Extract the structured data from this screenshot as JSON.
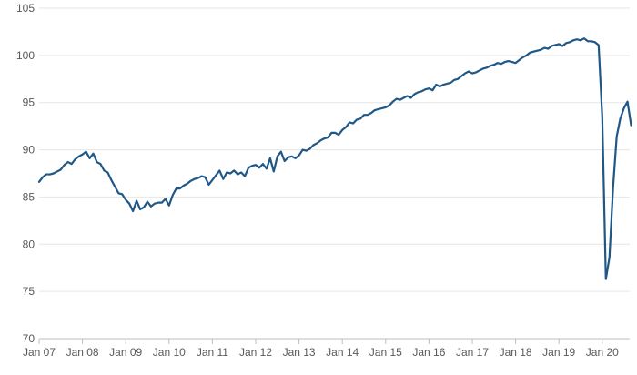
{
  "chart_data": {
    "type": "line",
    "title": "",
    "xlabel": "",
    "ylabel": "",
    "ylim": [
      70,
      105
    ],
    "y_ticks": [
      70,
      75,
      80,
      85,
      90,
      95,
      100,
      105
    ],
    "x_tick_labels": [
      "Jan 07",
      "Jan 08",
      "Jan 09",
      "Jan 10",
      "Jan 11",
      "Jan 12",
      "Jan 13",
      "Jan 14",
      "Jan 15",
      "Jan 16",
      "Jan 17",
      "Jan 18",
      "Jan 19",
      "Jan 20"
    ],
    "grid": "horizontal",
    "series_color": "#1f5786",
    "series": [
      {
        "values": [
          86.6,
          87.1,
          87.4,
          87.4,
          87.5,
          87.7,
          87.9,
          88.4,
          88.7,
          88.5,
          89.0,
          89.3,
          89.5,
          89.8,
          89.1,
          89.6,
          88.7,
          88.5,
          87.8,
          87.6,
          86.8,
          86.1,
          85.4,
          85.3,
          84.7,
          84.3,
          83.5,
          84.6,
          83.7,
          83.9,
          84.5,
          84.0,
          84.3,
          84.4,
          84.4,
          84.8,
          84.1,
          85.2,
          85.9,
          85.9,
          86.2,
          86.4,
          86.7,
          86.9,
          87.0,
          87.2,
          87.1,
          86.3,
          86.8,
          87.3,
          87.8,
          86.9,
          87.6,
          87.5,
          87.8,
          87.4,
          87.6,
          87.2,
          88.1,
          88.3,
          88.4,
          88.1,
          88.5,
          88.0,
          89.1,
          87.7,
          89.3,
          89.8,
          88.8,
          89.2,
          89.3,
          89.1,
          89.4,
          90.0,
          89.9,
          90.1,
          90.5,
          90.7,
          91.0,
          91.2,
          91.3,
          91.8,
          91.8,
          91.6,
          92.1,
          92.4,
          92.9,
          92.8,
          93.2,
          93.3,
          93.7,
          93.7,
          93.9,
          94.2,
          94.3,
          94.4,
          94.5,
          94.7,
          95.1,
          95.4,
          95.3,
          95.5,
          95.7,
          95.5,
          95.9,
          96.1,
          96.2,
          96.4,
          96.5,
          96.3,
          96.9,
          96.7,
          96.9,
          97.0,
          97.1,
          97.4,
          97.5,
          97.8,
          98.1,
          98.3,
          98.1,
          98.2,
          98.4,
          98.6,
          98.7,
          98.9,
          99.0,
          99.2,
          99.1,
          99.3,
          99.4,
          99.3,
          99.2,
          99.5,
          99.8,
          100.0,
          100.3,
          100.4,
          100.5,
          100.6,
          100.8,
          100.7,
          101.0,
          101.1,
          101.2,
          101.0,
          101.3,
          101.4,
          101.6,
          101.7,
          101.6,
          101.8,
          101.5,
          101.5,
          101.4,
          101.1,
          93.5,
          76.3,
          78.6,
          86.0,
          91.4,
          93.3,
          94.4,
          95.1,
          92.6
        ]
      }
    ]
  }
}
